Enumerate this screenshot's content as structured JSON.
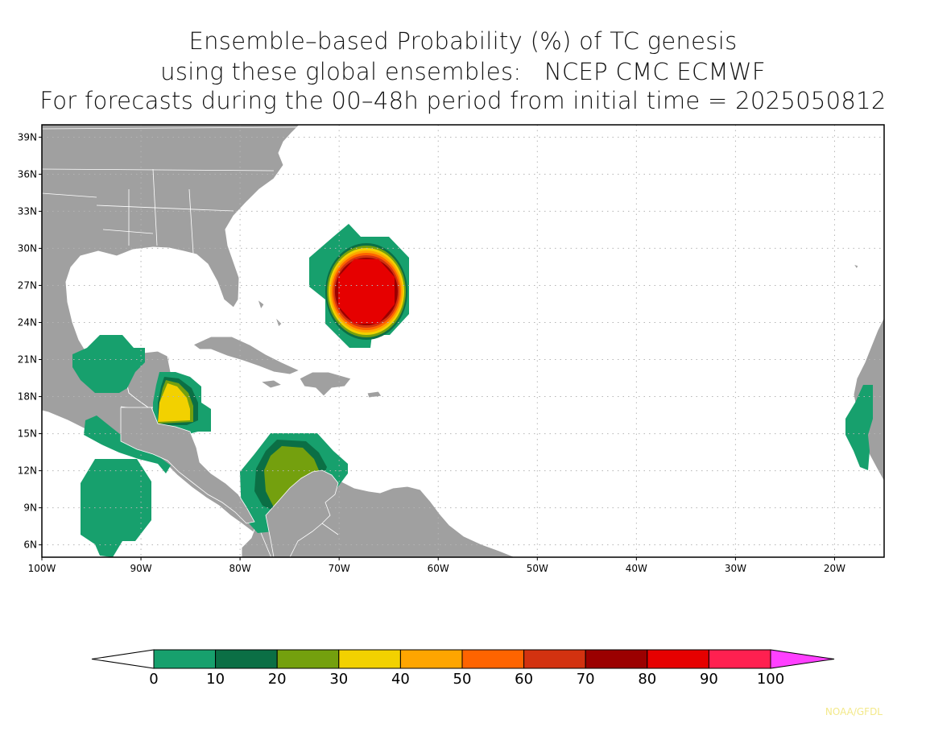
{
  "title": {
    "line1": "Ensemble–based Probability (%) of TC genesis",
    "line2": "using these global ensembles:   NCEP CMC ECMWF",
    "line3": "For forecasts during the 00–48h period from initial time = 2025050812"
  },
  "map": {
    "lon_range": [
      -100,
      -15
    ],
    "lat_range": [
      5,
      40
    ],
    "land_color": "#a0a0a0",
    "ocean_color": "#ffffff",
    "grid": "dotted",
    "lat_ticks": [
      {
        "value": 39,
        "label": "39N"
      },
      {
        "value": 36,
        "label": "36N"
      },
      {
        "value": 33,
        "label": "33N"
      },
      {
        "value": 30,
        "label": "30N"
      },
      {
        "value": 27,
        "label": "27N"
      },
      {
        "value": 24,
        "label": "24N"
      },
      {
        "value": 21,
        "label": "21N"
      },
      {
        "value": 18,
        "label": "18N"
      },
      {
        "value": 15,
        "label": "15N"
      },
      {
        "value": 12,
        "label": "12N"
      },
      {
        "value": 9,
        "label": "9N"
      },
      {
        "value": 6,
        "label": "6N"
      }
    ],
    "lon_ticks": [
      {
        "value": -100,
        "label": "100W"
      },
      {
        "value": -90,
        "label": "90W"
      },
      {
        "value": -80,
        "label": "80W"
      },
      {
        "value": -70,
        "label": "70W"
      },
      {
        "value": -60,
        "label": "60W"
      },
      {
        "value": -50,
        "label": "50W"
      },
      {
        "value": -40,
        "label": "40W"
      },
      {
        "value": -30,
        "label": "30W"
      },
      {
        "value": -20,
        "label": "20W"
      }
    ]
  },
  "probability_areas": [
    {
      "name": "Atlantic east of Bahamas",
      "center_lon": -67.5,
      "center_lat": 26.6,
      "max_probability_range": "90-100"
    },
    {
      "name": "Gulf of Honduras / Belize",
      "center_lon": -87,
      "center_lat": 17.5,
      "max_probability_range": "30-40"
    },
    {
      "name": "Southwestern Caribbean",
      "center_lon": -75.5,
      "center_lat": 11.5,
      "max_probability_range": "20-30"
    },
    {
      "name": "Bay of Campeche",
      "center_lon": -93,
      "center_lat": 20.5,
      "max_probability_range": "0-10"
    },
    {
      "name": "Eastern Pacific south of Mexico",
      "center_lon": -92.5,
      "center_lat": 9.5,
      "max_probability_range": "0-10"
    },
    {
      "name": "Eastern Pacific off Guatemala",
      "center_lon": -91.5,
      "center_lat": 14.5,
      "max_probability_range": "0-10"
    },
    {
      "name": "Off West Africa",
      "center_lon": -17.5,
      "center_lat": 16.0,
      "max_probability_range": "0-10"
    }
  ],
  "colorbar": {
    "labels": [
      "0",
      "10",
      "20",
      "30",
      "40",
      "50",
      "60",
      "70",
      "80",
      "90",
      "100"
    ],
    "colors": [
      "#17a06d",
      "#0b6f45",
      "#74a00e",
      "#f2d100",
      "#fea500",
      "#fe6400",
      "#d23210",
      "#9b0000",
      "#e60000",
      "#ff2050"
    ],
    "under_color": "#ffffff",
    "over_color": "#ff40ff"
  },
  "credit": "NOAA/GFDL"
}
